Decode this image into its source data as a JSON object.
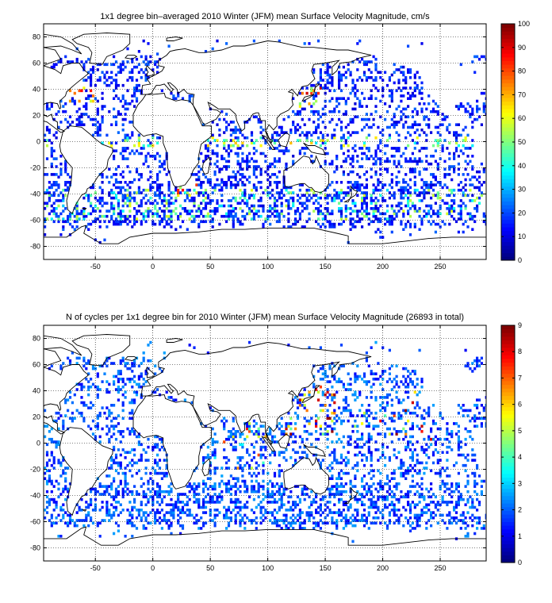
{
  "figure": {
    "panels": [
      {
        "title": "1x1 degree bin–averaged 2010 Winter (JFM) mean Surface Velocity Magnitude, cm/s",
        "colorbar_ticks": [
          "0",
          "10",
          "20",
          "30",
          "40",
          "50",
          "60",
          "70",
          "80",
          "90",
          "100"
        ]
      },
      {
        "title": "N of cycles per 1x1 degree bin for 2010 Winter (JFM) mean Surface Velocity Magnitude (26893 in total)",
        "colorbar_ticks": [
          "0",
          "1",
          "2",
          "3",
          "4",
          "5",
          "6",
          "7",
          "8",
          "9"
        ]
      }
    ]
  },
  "chart_data": [
    {
      "type": "heatmap",
      "title": "1x1 degree bin–averaged 2010 Winter (JFM) mean Surface Velocity Magnitude, cm/s",
      "x_ticks": [
        -50,
        0,
        50,
        100,
        150,
        200,
        250
      ],
      "y_ticks": [
        -80,
        -60,
        -40,
        -20,
        0,
        20,
        40,
        60,
        80
      ],
      "xlim": [
        -95,
        290
      ],
      "ylim": [
        -90,
        90
      ],
      "colorbar": {
        "min": 0,
        "max": 100,
        "ticks": [
          0,
          10,
          20,
          30,
          40,
          50,
          60,
          70,
          80,
          90,
          100
        ],
        "colormap": "jet"
      },
      "grid": true,
      "description_of_values": "Scattered ocean bins; mostly 5–25 cm/s, higher (40–100) along equator, Kuroshio, Gulf Stream, Agulhas and Antarctic Circumpolar Current"
    },
    {
      "type": "heatmap",
      "title": "N of cycles per 1x1 degree bin for 2010 Winter (JFM) mean Surface Velocity Magnitude (26893 in total)",
      "x_ticks": [
        -50,
        0,
        50,
        100,
        150,
        200,
        250
      ],
      "y_ticks": [
        -80,
        -60,
        -40,
        -20,
        0,
        20,
        40,
        60,
        80
      ],
      "xlim": [
        -95,
        290
      ],
      "ylim": [
        -90,
        90
      ],
      "colorbar": {
        "min": 0,
        "max": 9,
        "ticks": [
          0,
          1,
          2,
          3,
          4,
          5,
          6,
          7,
          8,
          9
        ],
        "colormap": "jet"
      },
      "grid": true,
      "total_cycles": 26893,
      "description_of_values": "Mostly 1–2 cycles per bin; higher counts (5–9) in the western Pacific near Japan and the Indian Ocean"
    }
  ]
}
